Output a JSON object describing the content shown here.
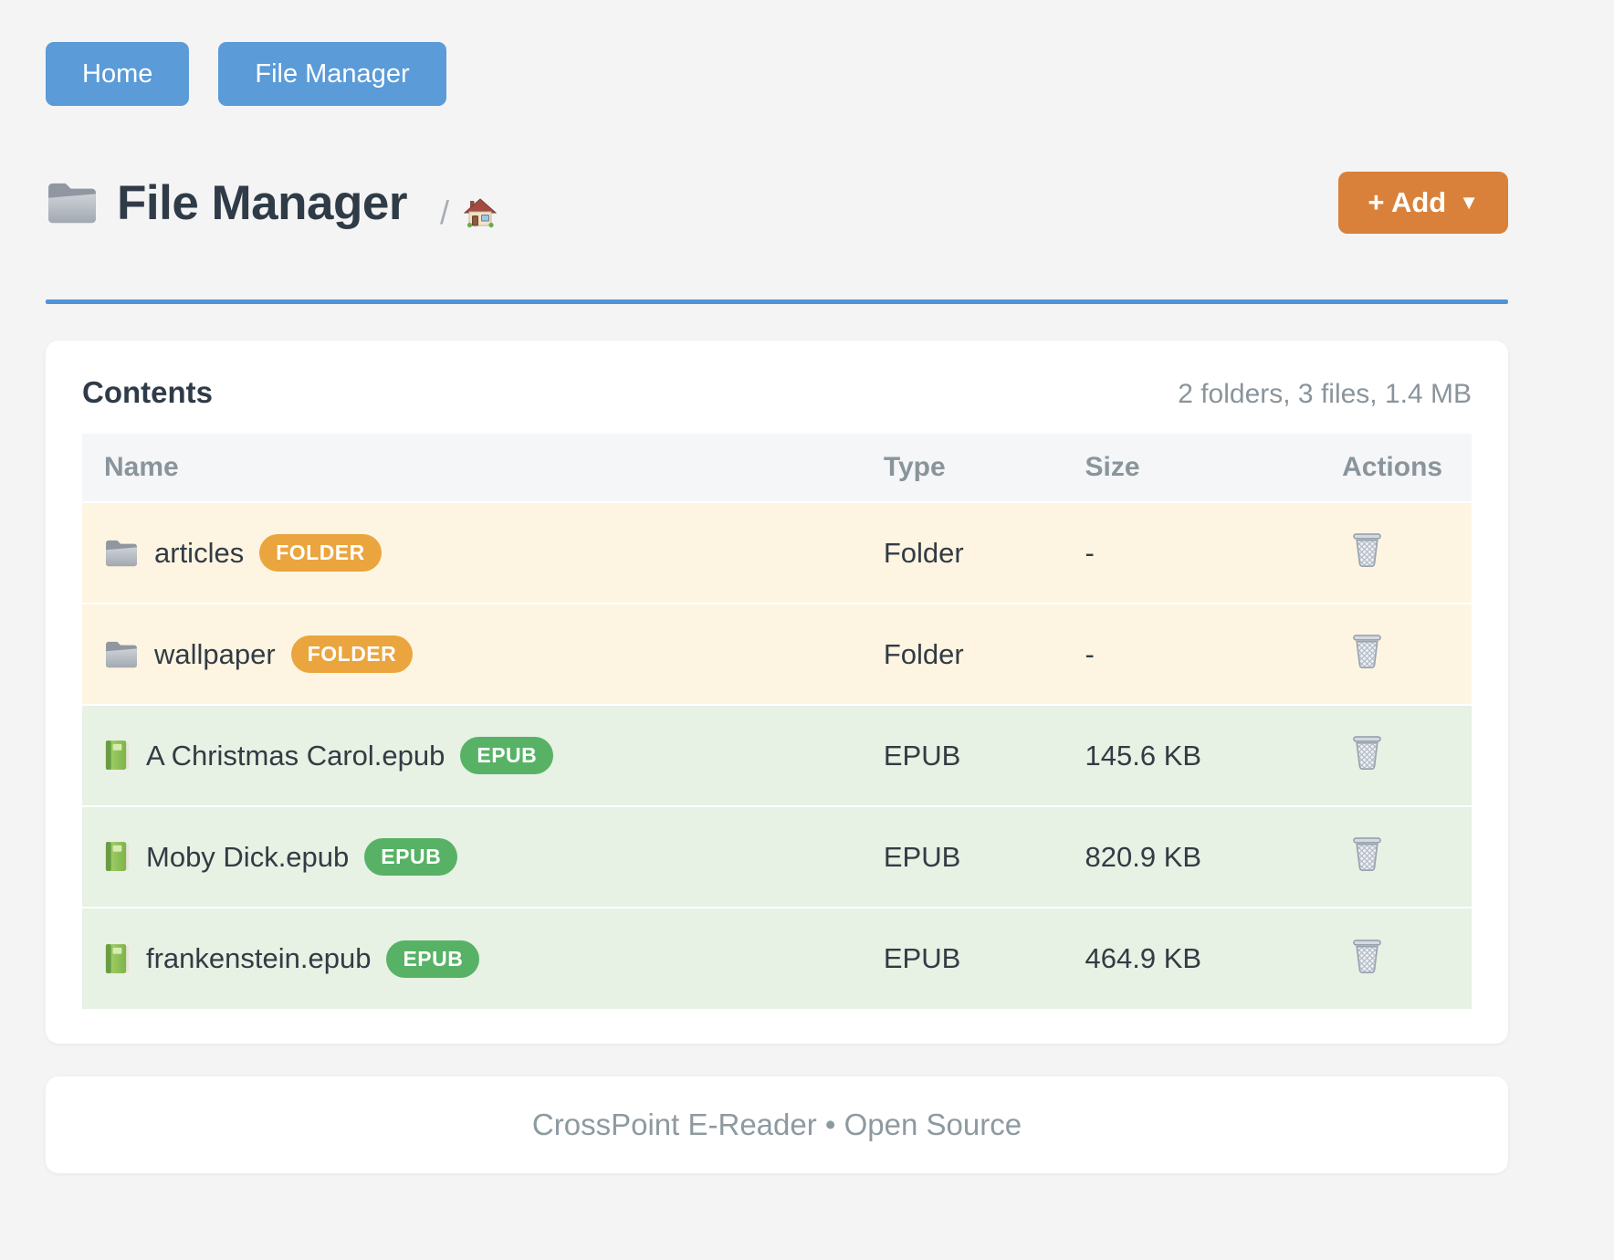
{
  "colors": {
    "page_bg": "#f4f4f5",
    "brand_blue": "#5a9bd8",
    "accent_orange": "#d9813a",
    "divider_blue": "#4e93d9",
    "badge_folder": "#eaa53e",
    "badge_epub": "#57b266",
    "row_folder_bg": "#fdf5e1",
    "row_epub_bg": "#e7f1e4",
    "heading_text": "#2f3b47",
    "muted_text": "#8a949b"
  },
  "nav": {
    "buttons": [
      {
        "label": "Home"
      },
      {
        "label": "File Manager"
      }
    ]
  },
  "header": {
    "title": "File Manager",
    "breadcrumb_separator": "/",
    "add_button_label": "+ Add",
    "add_button_caret": "▼"
  },
  "contents": {
    "title": "Contents",
    "summary": "2 folders, 3 files, 1.4 MB",
    "table": {
      "columns": [
        "Name",
        "Type",
        "Size",
        "Actions"
      ],
      "rows": [
        {
          "name": "articles",
          "badge": "FOLDER",
          "type": "Folder",
          "size": "-",
          "kind": "folder",
          "icon": "folder-icon"
        },
        {
          "name": "wallpaper",
          "badge": "FOLDER",
          "type": "Folder",
          "size": "-",
          "kind": "folder",
          "icon": "folder-icon"
        },
        {
          "name": "A Christmas Carol.epub",
          "badge": "EPUB",
          "type": "EPUB",
          "size": "145.6 KB",
          "kind": "epub",
          "icon": "book-icon"
        },
        {
          "name": "Moby Dick.epub",
          "badge": "EPUB",
          "type": "EPUB",
          "size": "820.9 KB",
          "kind": "epub",
          "icon": "book-icon"
        },
        {
          "name": "frankenstein.epub",
          "badge": "EPUB",
          "type": "EPUB",
          "size": "464.9 KB",
          "kind": "epub",
          "icon": "book-icon"
        }
      ]
    }
  },
  "footer": {
    "text": "CrossPoint E-Reader • Open Source"
  }
}
